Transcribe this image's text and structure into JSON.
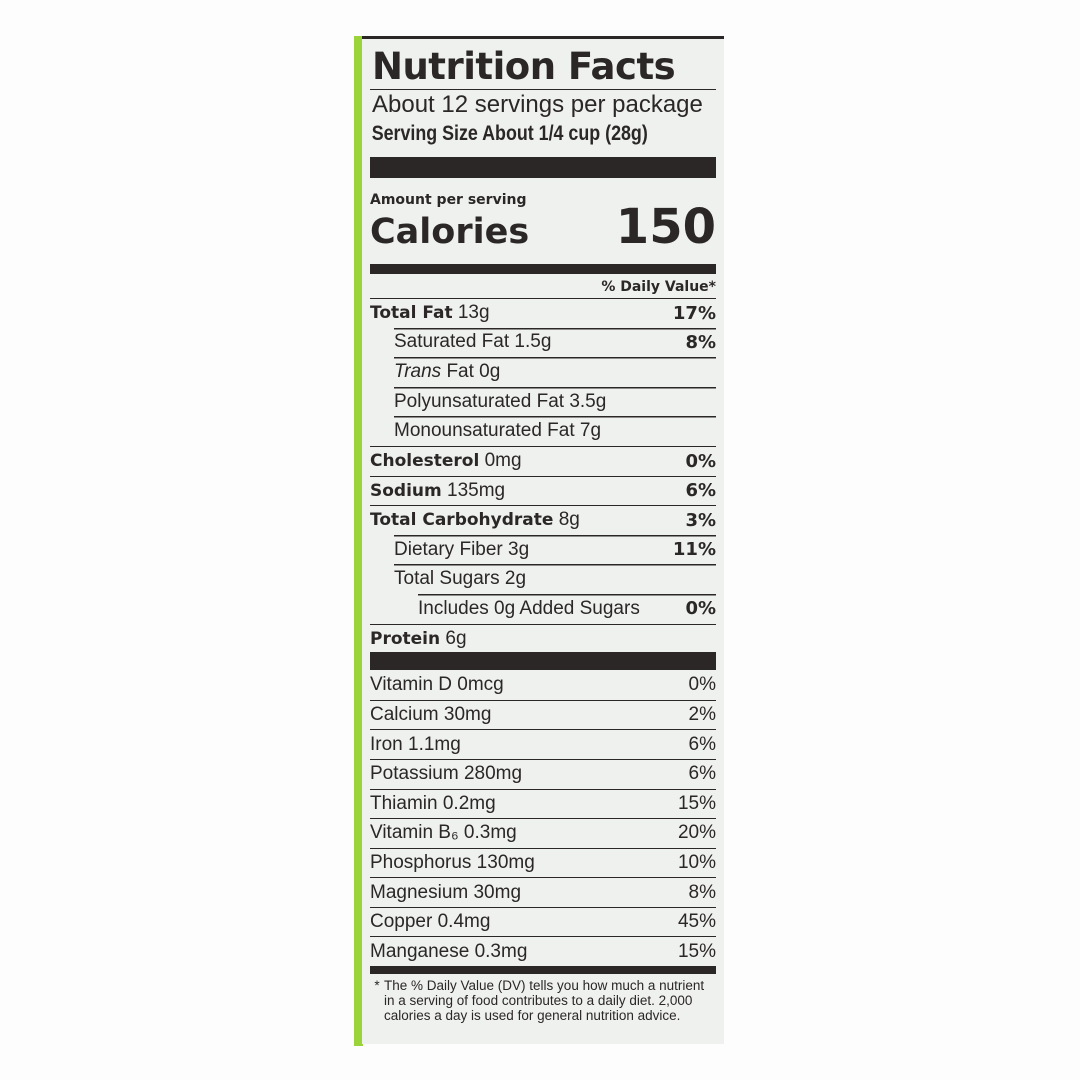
{
  "title": "Nutrition Facts",
  "servings": "About 12 servings per package",
  "serving_size": "Serving Size About 1/4 cup (28g)",
  "amount_per_serving": "Amount per serving",
  "calories_label": "Calories",
  "calories_value": "150",
  "daily_value_header": "% Daily Value*",
  "nutrients": [
    {
      "name": "Total Fat",
      "amount": "13g",
      "dv": "17%",
      "bold": true,
      "indent": 0
    },
    {
      "name": "Saturated Fat",
      "amount": "1.5g",
      "dv": "8%",
      "bold": false,
      "indent": 1
    },
    {
      "name": "Trans",
      "amount": "Fat 0g",
      "dv": "",
      "bold": false,
      "indent": 1,
      "italic": true
    },
    {
      "name": "Polyunsaturated Fat",
      "amount": "3.5g",
      "dv": "",
      "bold": false,
      "indent": 1
    },
    {
      "name": "Monounsaturated Fat",
      "amount": "7g",
      "dv": "",
      "bold": false,
      "indent": 1
    },
    {
      "name": "Cholesterol",
      "amount": "0mg",
      "dv": "0%",
      "bold": true,
      "indent": 0
    },
    {
      "name": "Sodium",
      "amount": "135mg",
      "dv": "6%",
      "bold": true,
      "indent": 0
    },
    {
      "name": "Total Carbohydrate",
      "amount": "8g",
      "dv": "3%",
      "bold": true,
      "indent": 0
    },
    {
      "name": "Dietary Fiber",
      "amount": "3g",
      "dv": "11%",
      "bold": false,
      "indent": 1
    },
    {
      "name": "Total Sugars",
      "amount": "2g",
      "dv": "",
      "bold": false,
      "indent": 1
    },
    {
      "name": "Includes 0g Added Sugars",
      "amount": "",
      "dv": "0%",
      "bold": false,
      "indent": 2
    },
    {
      "name": "Protein",
      "amount": "6g",
      "dv": "",
      "bold": true,
      "indent": 0
    }
  ],
  "vitamins": [
    {
      "name": "Vitamin D 0mcg",
      "dv": "0%"
    },
    {
      "name": "Calcium 30mg",
      "dv": "2%"
    },
    {
      "name": "Iron 1.1mg",
      "dv": "6%"
    },
    {
      "name": "Potassium 280mg",
      "dv": "6%"
    },
    {
      "name": "Thiamin 0.2mg",
      "dv": "15%"
    },
    {
      "name": "Vitamin B₆ 0.3mg",
      "dv": "20%"
    },
    {
      "name": "Phosphorus 130mg",
      "dv": "10%"
    },
    {
      "name": "Magnesium 30mg",
      "dv": "8%"
    },
    {
      "name": "Copper 0.4mg",
      "dv": "45%"
    },
    {
      "name": "Manganese 0.3mg",
      "dv": "15%"
    }
  ],
  "footnote_mark": "*",
  "footnote": "The % Daily Value (DV) tells you how much a nutrient in a serving of food contributes to a daily diet. 2,000 calories a day is used for general nutrition advice.",
  "colors": {
    "ink": "#2b2727",
    "label_bg": "#eef1ee",
    "package_green": "#9bd43a"
  }
}
